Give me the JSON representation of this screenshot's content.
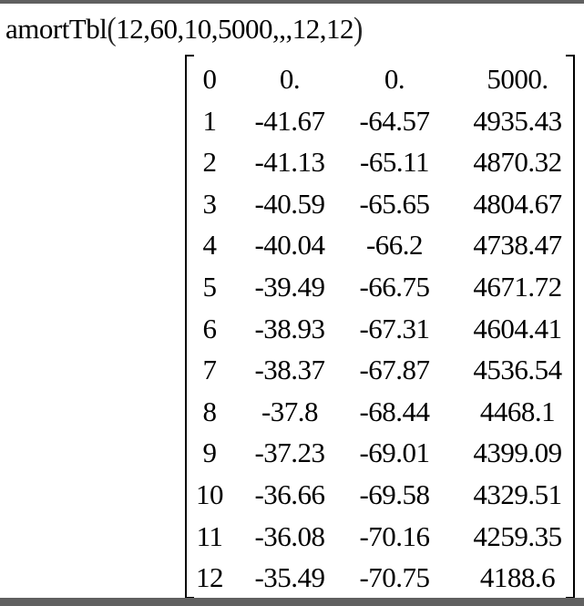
{
  "command": {
    "function_name": "amortTbl",
    "arguments": "12,60,10,5000,,,12,12"
  },
  "result_matrix": [
    [
      "0",
      "0.",
      "0.",
      "5000."
    ],
    [
      "1",
      "-41.67",
      "-64.57",
      "4935.43"
    ],
    [
      "2",
      "-41.13",
      "-65.11",
      "4870.32"
    ],
    [
      "3",
      "-40.59",
      "-65.65",
      "4804.67"
    ],
    [
      "4",
      "-40.04",
      "-66.2",
      "4738.47"
    ],
    [
      "5",
      "-39.49",
      "-66.75",
      "4671.72"
    ],
    [
      "6",
      "-38.93",
      "-67.31",
      "4604.41"
    ],
    [
      "7",
      "-38.37",
      "-67.87",
      "4536.54"
    ],
    [
      "8",
      "-37.8",
      "-68.44",
      "4468.1"
    ],
    [
      "9",
      "-37.23",
      "-69.01",
      "4399.09"
    ],
    [
      "10",
      "-36.66",
      "-69.58",
      "4329.51"
    ],
    [
      "11",
      "-36.08",
      "-70.16",
      "4259.35"
    ],
    [
      "12",
      "-35.49",
      "-70.75",
      "4188.6"
    ]
  ]
}
